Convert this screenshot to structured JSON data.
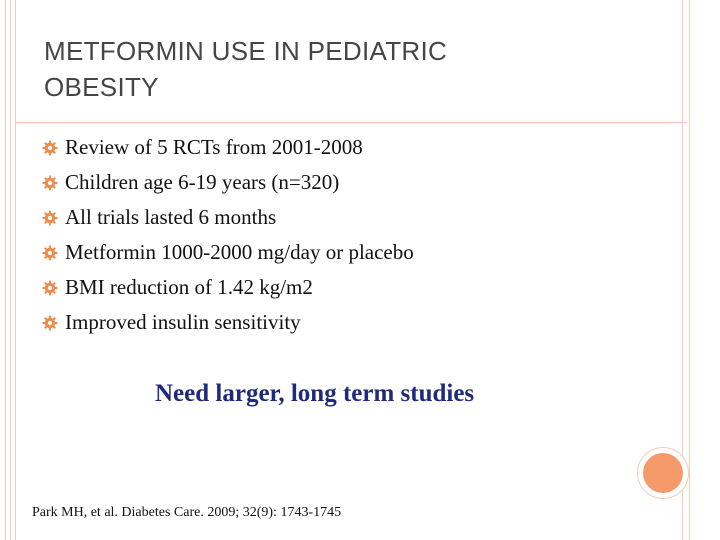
{
  "slide": {
    "title_line1": "METFORMIN USE IN PEDIATRIC",
    "title_line2": "OBESITY",
    "bullets": [
      "Review of 5 RCTs from 2001-2008",
      "Children age 6-19 years (n=320)",
      "All trials lasted 6 months",
      "Metformin 1000-2000 mg/day or placebo",
      "BMI reduction of 1.42 kg/m2",
      "Improved insulin sensitivity"
    ],
    "bullet_icon": "gear-icon",
    "callout": "Need larger, long term studies",
    "citation": "Park MH, et al.  Diabetes Care.  2009; 32(9): 1743-1745"
  },
  "colors": {
    "accent": "#f59a6a",
    "bullet_icon": "#f08a4b",
    "callout_text": "#1f2b7a",
    "title_text": "#454545",
    "border_lines": "#f3cdb8"
  }
}
